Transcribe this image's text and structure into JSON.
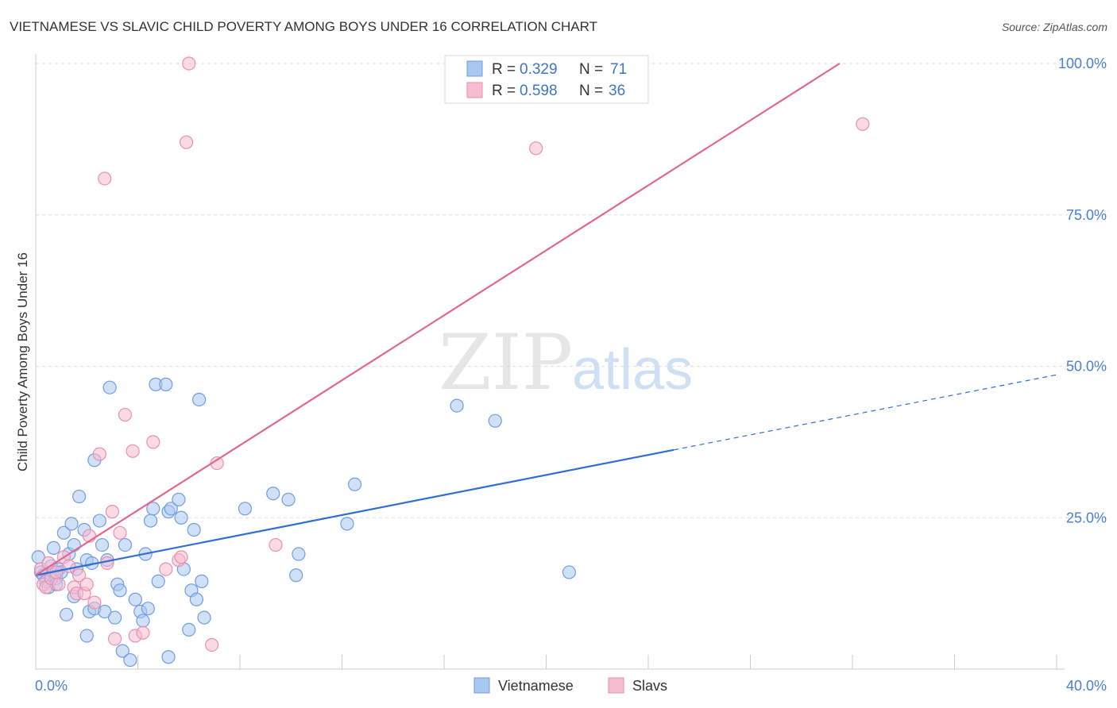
{
  "title": "VIETNAMESE VS SLAVIC CHILD POVERTY AMONG BOYS UNDER 16 CORRELATION CHART",
  "source": "Source: ZipAtlas.com",
  "watermark": {
    "zip": "ZIP",
    "atlas": "atlas"
  },
  "colors": {
    "vietnamese_fill": "#a9c8f0",
    "vietnamese_stroke": "#6f9ee0",
    "vietnamese_line": "#2e6fd0",
    "slavs_fill": "#f6bcd0",
    "slavs_stroke": "#e98fb0",
    "slavs_line": "#e06890",
    "tick_text": "#4a7fd1",
    "grid": "#dddddd"
  },
  "legend_box": {
    "rows": [
      {
        "r_label": "R = ",
        "r_value": "0.329",
        "n_label": "N = ",
        "n_value": "71"
      },
      {
        "r_label": "R = ",
        "r_value": "0.598",
        "n_label": "N = ",
        "n_value": "36"
      }
    ]
  },
  "chart_data": {
    "type": "scatter",
    "xlabel": "",
    "ylabel": "Child Poverty Among Boys Under 16",
    "xlim": [
      0,
      40
    ],
    "ylim": [
      0,
      100
    ],
    "x_tick_labels": [
      "0.0%",
      "40.0%"
    ],
    "y_ticks": [
      25,
      50,
      75,
      100
    ],
    "y_tick_labels": [
      "25.0%",
      "50.0%",
      "75.0%",
      "100.0%"
    ],
    "grid": "horizontal dashed",
    "legend_position": "top-center and bottom-center",
    "series": [
      {
        "name": "Vietnamese",
        "r": 0.329,
        "n": 71,
        "trend": {
          "x0": 0,
          "y0": 15.5,
          "x1": 25,
          "y1": 36.2,
          "dashed_to_x": 40,
          "dashed_to_y": 48.6
        },
        "points": [
          [
            0.1,
            18.5
          ],
          [
            0.2,
            16.0
          ],
          [
            0.3,
            15.5
          ],
          [
            0.4,
            14.5
          ],
          [
            0.5,
            13.5
          ],
          [
            0.6,
            17.0
          ],
          [
            0.7,
            16.0
          ],
          [
            0.8,
            15.0
          ],
          [
            0.9,
            16.5
          ],
          [
            1.0,
            16.0
          ],
          [
            0.7,
            20.0
          ],
          [
            1.1,
            22.5
          ],
          [
            1.3,
            19.0
          ],
          [
            1.4,
            24.0
          ],
          [
            1.5,
            20.5
          ],
          [
            1.6,
            16.5
          ],
          [
            1.7,
            28.5
          ],
          [
            1.9,
            23.0
          ],
          [
            2.0,
            18.0
          ],
          [
            2.2,
            17.5
          ],
          [
            1.5,
            12.0
          ],
          [
            1.2,
            9.0
          ],
          [
            2.0,
            5.5
          ],
          [
            2.1,
            9.5
          ],
          [
            2.3,
            10.0
          ],
          [
            2.5,
            24.5
          ],
          [
            2.6,
            20.5
          ],
          [
            2.7,
            9.5
          ],
          [
            2.8,
            18.0
          ],
          [
            2.3,
            34.5
          ],
          [
            2.9,
            46.5
          ],
          [
            3.2,
            14.0
          ],
          [
            3.3,
            13.0
          ],
          [
            3.1,
            8.5
          ],
          [
            3.5,
            20.5
          ],
          [
            3.4,
            3.0
          ],
          [
            3.7,
            1.5
          ],
          [
            3.9,
            11.5
          ],
          [
            4.1,
            9.5
          ],
          [
            4.2,
            8.0
          ],
          [
            4.3,
            19.0
          ],
          [
            4.5,
            24.5
          ],
          [
            4.6,
            26.5
          ],
          [
            4.4,
            10.0
          ],
          [
            4.8,
            14.5
          ],
          [
            4.7,
            47.0
          ],
          [
            5.1,
            47.0
          ],
          [
            5.2,
            26.0
          ],
          [
            5.3,
            26.5
          ],
          [
            5.2,
            2.0
          ],
          [
            5.6,
            28.0
          ],
          [
            5.7,
            25.0
          ],
          [
            5.8,
            16.5
          ],
          [
            6.1,
            13.0
          ],
          [
            6.2,
            23.0
          ],
          [
            6.3,
            11.5
          ],
          [
            6.5,
            14.5
          ],
          [
            6.0,
            6.5
          ],
          [
            6.6,
            8.5
          ],
          [
            6.4,
            44.5
          ],
          [
            8.2,
            26.5
          ],
          [
            9.3,
            29.0
          ],
          [
            9.9,
            28.0
          ],
          [
            10.3,
            19.0
          ],
          [
            10.2,
            15.5
          ],
          [
            12.5,
            30.5
          ],
          [
            12.2,
            24.0
          ],
          [
            16.5,
            43.5
          ],
          [
            18.0,
            41.0
          ],
          [
            20.9,
            16.0
          ],
          [
            0.8,
            14.0
          ]
        ]
      },
      {
        "name": "Slavs",
        "r": 0.598,
        "n": 36,
        "trend": {
          "x0": 0,
          "y0": 15.5,
          "x1": 31.5,
          "y1": 100
        },
        "points": [
          [
            0.2,
            16.5
          ],
          [
            0.3,
            14.0
          ],
          [
            0.4,
            13.5
          ],
          [
            0.5,
            17.5
          ],
          [
            0.6,
            15.0
          ],
          [
            0.8,
            16.0
          ],
          [
            0.9,
            14.0
          ],
          [
            1.1,
            18.5
          ],
          [
            1.3,
            17.0
          ],
          [
            1.5,
            13.5
          ],
          [
            1.6,
            12.5
          ],
          [
            1.7,
            15.5
          ],
          [
            1.9,
            12.5
          ],
          [
            2.0,
            14.0
          ],
          [
            2.1,
            22.0
          ],
          [
            2.3,
            11.0
          ],
          [
            2.5,
            35.5
          ],
          [
            2.8,
            17.5
          ],
          [
            3.0,
            26.0
          ],
          [
            3.1,
            5.0
          ],
          [
            3.3,
            22.5
          ],
          [
            3.5,
            42.0
          ],
          [
            3.8,
            36.0
          ],
          [
            3.9,
            5.5
          ],
          [
            4.2,
            6.0
          ],
          [
            4.6,
            37.5
          ],
          [
            5.1,
            16.5
          ],
          [
            5.6,
            18.0
          ],
          [
            5.7,
            18.5
          ],
          [
            5.9,
            87.0
          ],
          [
            6.0,
            100.0
          ],
          [
            2.7,
            81.0
          ],
          [
            7.1,
            34.0
          ],
          [
            6.9,
            4.0
          ],
          [
            9.4,
            20.5
          ],
          [
            19.6,
            86.0
          ]
        ]
      },
      {
        "name": "Slavs-outlier",
        "points": [
          [
            32.4,
            90.0
          ]
        ]
      }
    ]
  }
}
